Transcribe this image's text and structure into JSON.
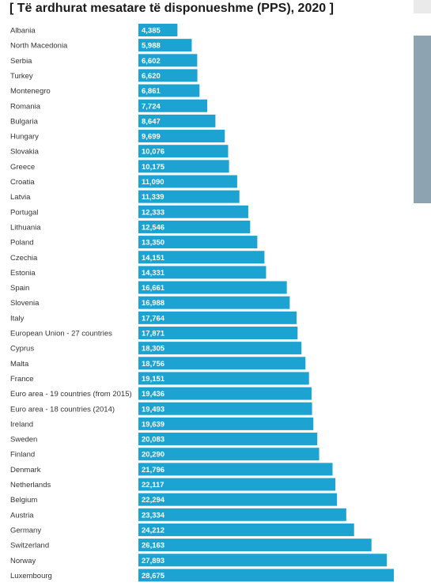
{
  "chart_data": {
    "type": "bar",
    "orientation": "horizontal",
    "title": "[ Të ardhurat mesatare të disponueshme (PPS), 2020 ]",
    "bar_color": "#1ca3d1",
    "categories": [
      "Albania",
      "North Macedonia",
      "Serbia",
      "Turkey",
      "Montenegro",
      "Romania",
      "Bulgaria",
      "Hungary",
      "Slovakia",
      "Greece",
      "Croatia",
      "Latvia",
      "Portugal",
      "Lithuania",
      "Poland",
      "Czechia",
      "Estonia",
      "Spain",
      "Slovenia",
      "Italy",
      "European Union - 27 countries",
      "Cyprus",
      "Malta",
      "France",
      "Euro area - 19 countries (from 2015)",
      "Euro area - 18 countries (2014)",
      "Ireland",
      "Sweden",
      "Finland",
      "Denmark",
      "Netherlands",
      "Belgium",
      "Austria",
      "Germany",
      "Switzerland",
      "Norway",
      "Luxembourg"
    ],
    "values": [
      4385,
      5988,
      6602,
      6620,
      6861,
      7724,
      8647,
      9699,
      10076,
      10175,
      11090,
      11339,
      12333,
      12546,
      13350,
      14151,
      14331,
      16661,
      16988,
      17764,
      17871,
      18305,
      18756,
      19151,
      19436,
      19493,
      19639,
      20083,
      20290,
      21796,
      22117,
      22294,
      23334,
      24212,
      26163,
      27893,
      28675
    ],
    "value_labels": [
      "4,385",
      "5,988",
      "6,602",
      "6,620",
      "6,861",
      "7,724",
      "8,647",
      "9,699",
      "10,076",
      "10,175",
      "11,090",
      "11,339",
      "12,333",
      "12,546",
      "13,350",
      "14,151",
      "14,331",
      "16,661",
      "16,988",
      "17,764",
      "17,871",
      "18,305",
      "18,756",
      "19,151",
      "19,436",
      "19,493",
      "19,639",
      "20,083",
      "20,290",
      "21,796",
      "22,117",
      "22,294",
      "23,334",
      "24,212",
      "26,163",
      "27,893",
      "28,675"
    ],
    "xlim": [
      0,
      28675
    ],
    "grid": false,
    "legend": "none"
  }
}
